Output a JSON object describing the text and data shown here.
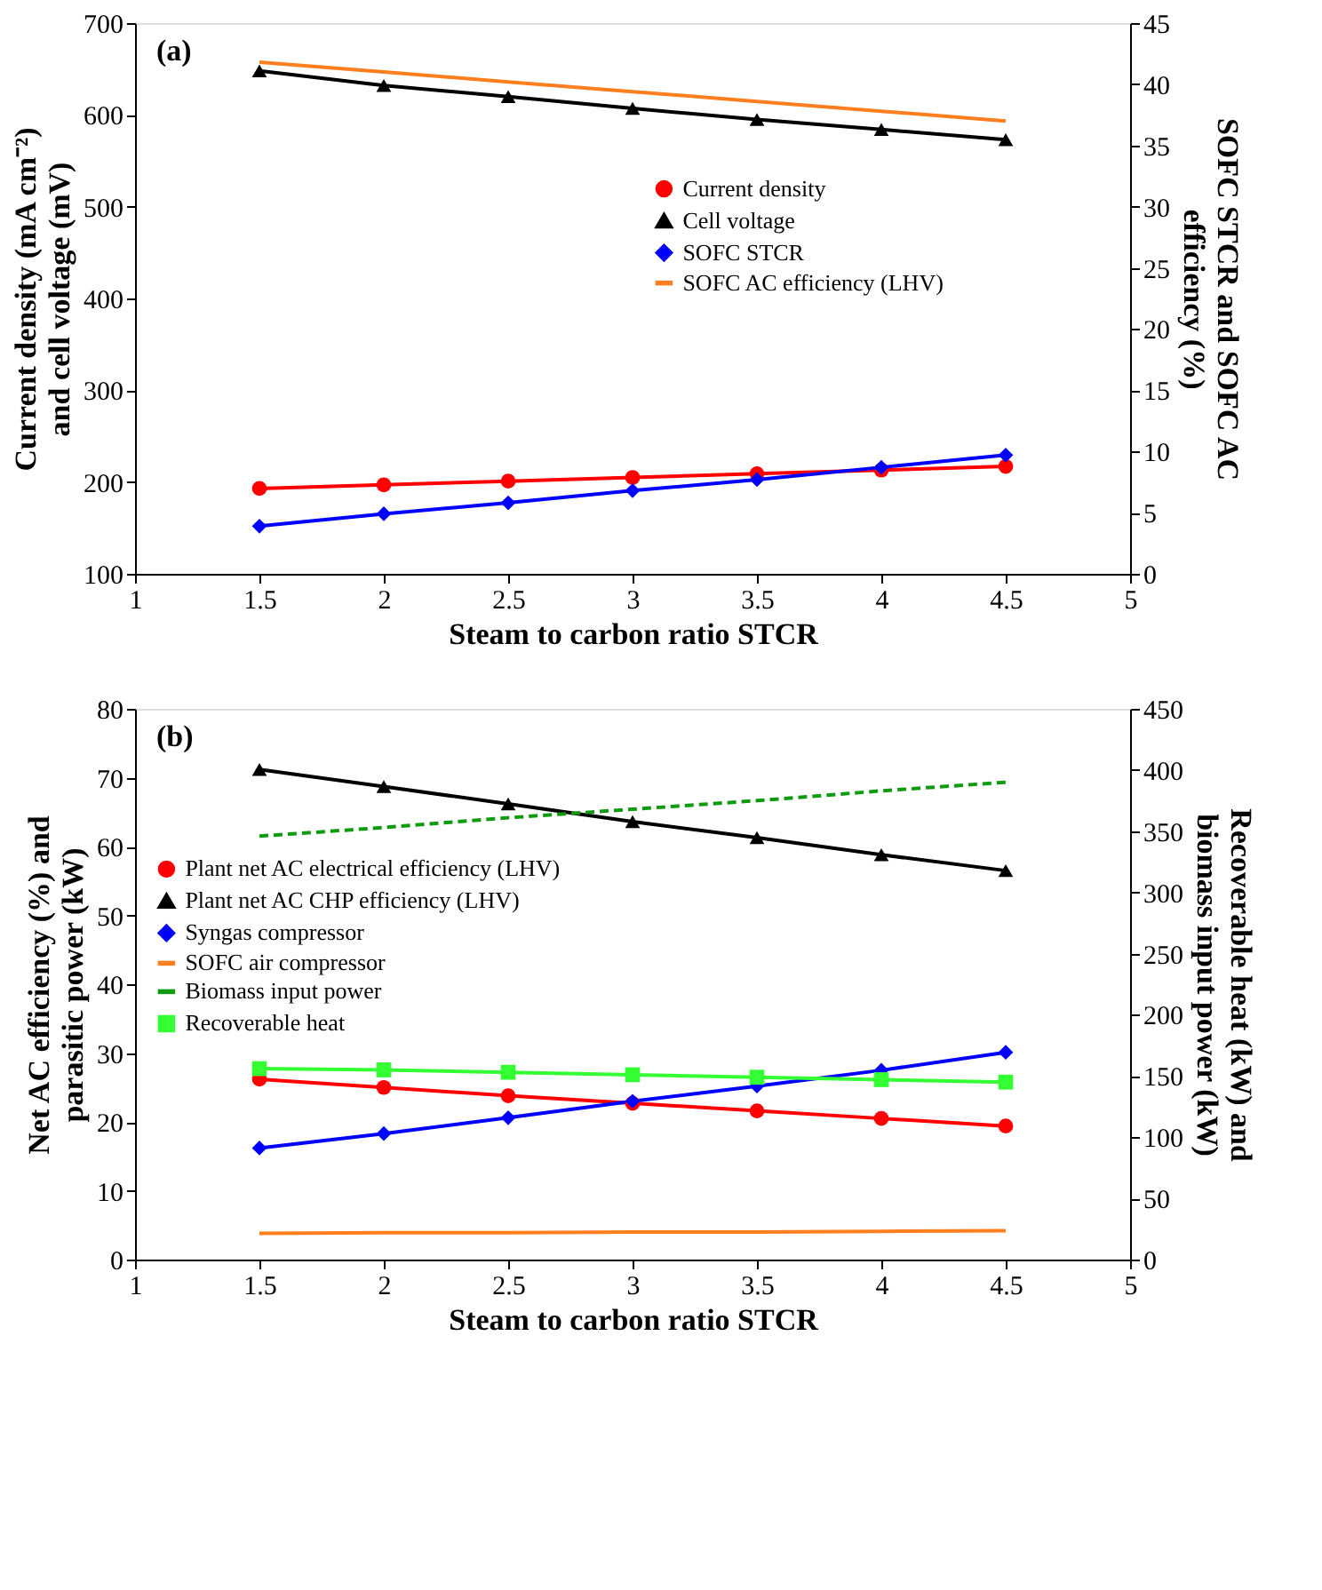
{
  "chart_data": [
    {
      "type": "line",
      "annotations": [
        "(a)"
      ],
      "xlabel": "Steam to carbon ratio STCR",
      "ylabel": "Current density (mA cm⁻²)\nand cell voltage (mV)",
      "y2label": "SOFC STCR and SOFC AC\nefficiency (%)",
      "x": [
        1.5,
        2,
        2.5,
        3,
        3.5,
        4,
        4.5
      ],
      "xlim": [
        1,
        5
      ],
      "xticks": [
        1,
        1.5,
        2,
        2.5,
        3,
        3.5,
        4,
        4.5,
        5
      ],
      "ylim": [
        100,
        700
      ],
      "yticks": [
        100,
        200,
        300,
        400,
        500,
        600,
        700
      ],
      "y2lim": [
        0,
        45
      ],
      "y2ticks": [
        0,
        5,
        10,
        15,
        20,
        25,
        30,
        35,
        40,
        45
      ],
      "grid": false,
      "legend": "right",
      "series": [
        {
          "name": "Current density",
          "color": "#ff0000",
          "marker": "circle",
          "line_style": "solid",
          "values": [
            193,
            197,
            201,
            205,
            209,
            213,
            217
          ]
        },
        {
          "name": "Cell voltage",
          "color": "#000000",
          "marker": "triangle",
          "line_style": "solid",
          "values": [
            648,
            632,
            620,
            607,
            595,
            584,
            573
          ]
        },
        {
          "name": "SOFC STCR",
          "color": "#0000ff",
          "marker": "diamond",
          "line_style": "solid",
          "axis": "y2",
          "values": [
            3.9,
            4.9,
            5.8,
            6.8,
            7.7,
            8.7,
            9.7
          ]
        },
        {
          "name": "SOFC AC efficiency (LHV)",
          "color": "#ff7f1e",
          "marker": "none",
          "line_style": "solid",
          "axis": "y2",
          "values": [
            41.8,
            41.0,
            40.2,
            39.4,
            38.6,
            37.8,
            37.0
          ]
        }
      ]
    },
    {
      "type": "line",
      "annotations": [
        "(b)"
      ],
      "xlabel": "Steam to carbon ratio STCR",
      "ylabel": "Net AC efficiency (%) and\nparasitic power (kW)",
      "y2label": "Recoverable heat (kW) and\nbiomass input power (kW)",
      "x": [
        1.5,
        2,
        2.5,
        3,
        3.5,
        4,
        4.5
      ],
      "xlim": [
        1,
        5
      ],
      "xticks": [
        1,
        1.5,
        2,
        2.5,
        3,
        3.5,
        4,
        4.5,
        5
      ],
      "ylim": [
        0,
        80
      ],
      "yticks": [
        0,
        10,
        20,
        30,
        40,
        50,
        60,
        70,
        80
      ],
      "y2lim": [
        0,
        450
      ],
      "y2ticks": [
        0,
        50,
        100,
        150,
        200,
        250,
        300,
        350,
        400,
        450
      ],
      "grid": false,
      "legend": "left",
      "series": [
        {
          "name": "Plant net AC electrical efficiency (LHV)",
          "color": "#ff0000",
          "marker": "circle",
          "line_style": "solid",
          "values": [
            26.2,
            25.0,
            23.8,
            22.7,
            21.6,
            20.5,
            19.4
          ]
        },
        {
          "name": "Plant net AC CHP efficiency (LHV)",
          "color": "#000000",
          "marker": "triangle",
          "line_style": "solid",
          "values": [
            71.2,
            68.7,
            66.2,
            63.6,
            61.3,
            58.8,
            56.5
          ]
        },
        {
          "name": "Syngas compressor",
          "color": "#0000ff",
          "marker": "diamond",
          "line_style": "solid",
          "values": [
            16.2,
            18.3,
            20.6,
            23.0,
            25.2,
            27.5,
            30.1
          ]
        },
        {
          "name": "SOFC air compressor",
          "color": "#ff7f1e",
          "marker": "none",
          "line_style": "solid",
          "values": [
            3.8,
            3.9,
            3.9,
            4.0,
            4.0,
            4.1,
            4.2
          ]
        },
        {
          "name": "Biomass input power",
          "color": "#109a10",
          "marker": "none",
          "line_style": "dashed",
          "axis": "y2",
          "values": [
            346,
            353,
            361,
            368,
            375,
            383,
            390
          ]
        },
        {
          "name": "Recoverable heat",
          "color": "#33ff33",
          "marker": "square",
          "line_style": "solid",
          "axis": "y2",
          "values": [
            156,
            155,
            153,
            151,
            149,
            147,
            145
          ]
        }
      ]
    }
  ]
}
